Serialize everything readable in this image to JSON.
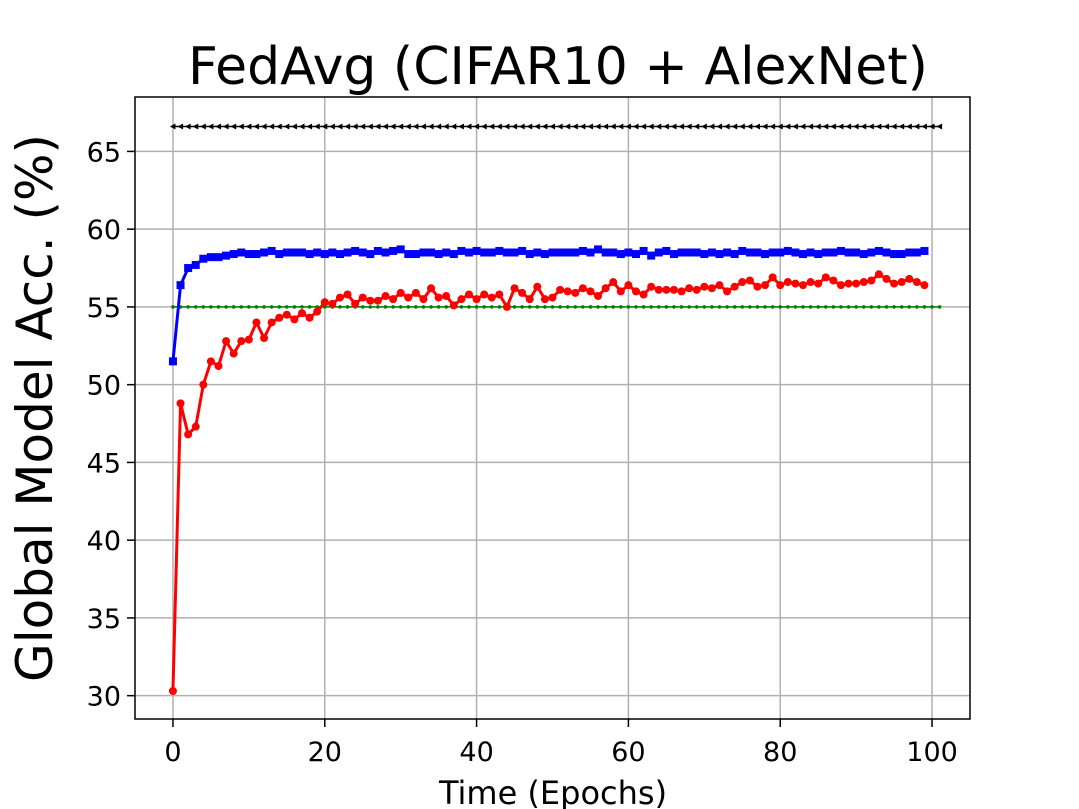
{
  "chart_data": {
    "type": "line",
    "title": "FedAvg (CIFAR10 + AlexNet)",
    "xlabel": "Time (Epochs)",
    "ylabel": "Global Model Acc. (%)",
    "xlim": [
      -5,
      105
    ],
    "ylim": [
      28.5,
      68.5
    ],
    "xticks": [
      0,
      20,
      40,
      60,
      80,
      100
    ],
    "yticks": [
      30,
      35,
      40,
      45,
      50,
      55,
      60,
      65
    ],
    "grid": true,
    "legend": "none",
    "series": [
      {
        "color": "#000000",
        "marker": "triangle-left",
        "x_start": 0,
        "x_end": 101,
        "x_step": 1,
        "constant": 66.6
      },
      {
        "color": "#008000",
        "marker": "dot",
        "x_start": 0,
        "x_end": 101,
        "x_step": 1,
        "constant": 55.0
      },
      {
        "color": "#0000ff",
        "marker": "square",
        "x_start": 0,
        "x_step": 1,
        "values": [
          51.5,
          56.4,
          57.5,
          57.7,
          58.1,
          58.2,
          58.2,
          58.3,
          58.4,
          58.5,
          58.4,
          58.4,
          58.5,
          58.6,
          58.4,
          58.5,
          58.5,
          58.5,
          58.4,
          58.5,
          58.4,
          58.5,
          58.4,
          58.5,
          58.6,
          58.5,
          58.4,
          58.6,
          58.5,
          58.6,
          58.7,
          58.4,
          58.4,
          58.5,
          58.5,
          58.4,
          58.5,
          58.4,
          58.6,
          58.5,
          58.6,
          58.5,
          58.5,
          58.6,
          58.5,
          58.5,
          58.6,
          58.4,
          58.5,
          58.4,
          58.5,
          58.5,
          58.5,
          58.5,
          58.6,
          58.5,
          58.7,
          58.5,
          58.5,
          58.4,
          58.5,
          58.4,
          58.6,
          58.3,
          58.5,
          58.6,
          58.4,
          58.5,
          58.5,
          58.5,
          58.4,
          58.5,
          58.4,
          58.5,
          58.4,
          58.6,
          58.5,
          58.5,
          58.4,
          58.5,
          58.5,
          58.6,
          58.5,
          58.4,
          58.5,
          58.4,
          58.5,
          58.5,
          58.6,
          58.5,
          58.5,
          58.4,
          58.5,
          58.6,
          58.5,
          58.4,
          58.4,
          58.5,
          58.5,
          58.6
        ]
      },
      {
        "color": "#ff0000",
        "marker": "dot",
        "x_start": 0,
        "x_step": 1,
        "values": [
          30.3,
          48.8,
          46.8,
          47.3,
          50.0,
          51.5,
          51.2,
          52.8,
          52.0,
          52.8,
          52.9,
          54.0,
          53.0,
          54.0,
          54.3,
          54.5,
          54.2,
          54.6,
          54.3,
          54.7,
          55.3,
          55.2,
          55.6,
          55.8,
          55.2,
          55.6,
          55.4,
          55.4,
          55.7,
          55.5,
          55.9,
          55.6,
          55.9,
          55.5,
          56.2,
          55.6,
          55.7,
          55.1,
          55.5,
          55.8,
          55.5,
          55.8,
          55.6,
          55.8,
          55.0,
          56.2,
          55.9,
          55.5,
          56.3,
          55.5,
          55.6,
          56.1,
          56.0,
          55.9,
          56.2,
          56.0,
          55.7,
          56.2,
          56.6,
          56.0,
          56.4,
          56.0,
          55.8,
          56.3,
          56.1,
          56.1,
          56.1,
          56.0,
          56.2,
          56.1,
          56.3,
          56.2,
          56.4,
          56.0,
          56.3,
          56.6,
          56.7,
          56.3,
          56.4,
          56.9,
          56.4,
          56.6,
          56.5,
          56.4,
          56.6,
          56.5,
          56.9,
          56.7,
          56.4,
          56.5,
          56.5,
          56.6,
          56.7,
          57.1,
          56.8,
          56.5,
          56.6,
          56.8,
          56.6,
          56.4
        ]
      }
    ]
  }
}
